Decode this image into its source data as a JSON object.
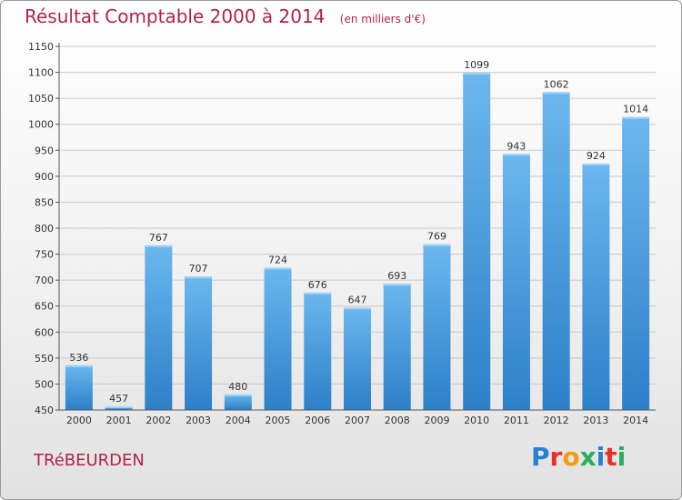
{
  "header": {
    "title": "Résultat Comptable 2000 à 2014",
    "subtitle": "(en milliers d'€)"
  },
  "footer": {
    "commune": "TRéBEURDEN",
    "logo_text": "Proxiti",
    "logo_colors": [
      "#2a7fd4",
      "#e8312b",
      "#f39c12",
      "#27ae60",
      "#2a7fd4",
      "#e8312b",
      "#27ae60"
    ]
  },
  "colors": {
    "bar_light": "#6bb7ef",
    "bar_dark": "#2c80c8",
    "grid": "#c8c8c8",
    "title": "#b0244c"
  },
  "chart_data": {
    "type": "bar",
    "title": "Résultat Comptable 2000 à 2014",
    "subtitle": "(en milliers d'€)",
    "categories": [
      "2000",
      "2001",
      "2002",
      "2003",
      "2004",
      "2005",
      "2006",
      "2007",
      "2008",
      "2009",
      "2010",
      "2011",
      "2012",
      "2013",
      "2014"
    ],
    "values": [
      536,
      457,
      767,
      707,
      480,
      724,
      676,
      647,
      693,
      769,
      1099,
      943,
      1062,
      924,
      1014
    ],
    "ylim": [
      450,
      1150
    ],
    "yticks": [
      450,
      500,
      550,
      600,
      650,
      700,
      750,
      800,
      850,
      900,
      950,
      1000,
      1050,
      1100,
      1150
    ],
    "grid": true,
    "data_labels": true
  }
}
